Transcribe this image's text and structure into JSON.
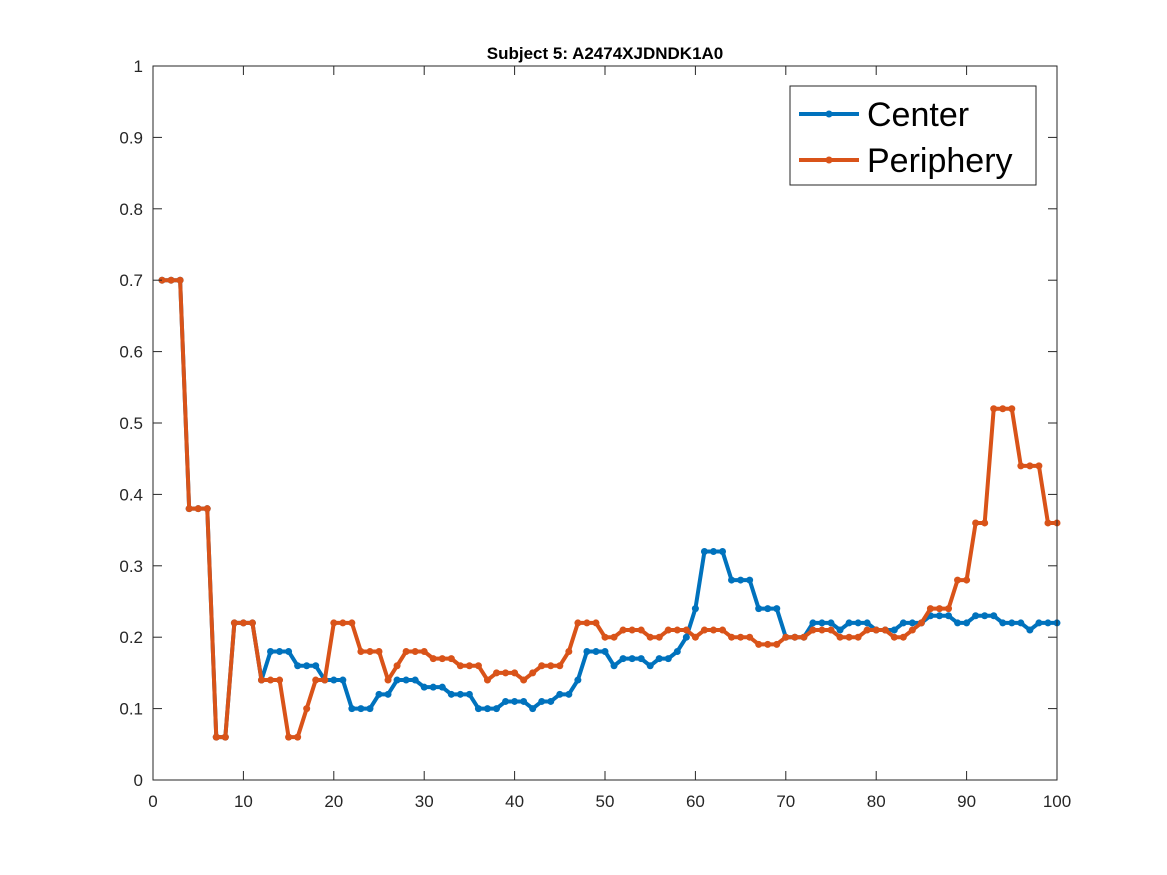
{
  "chart_data": {
    "type": "line",
    "title": "Subject 5: A2474XJDNDK1A0",
    "xlabel": "",
    "ylabel": "",
    "xlim": [
      0,
      100
    ],
    "ylim": [
      0,
      1
    ],
    "xticks": [
      "0",
      "10",
      "20",
      "30",
      "40",
      "50",
      "60",
      "70",
      "80",
      "90",
      "100"
    ],
    "yticks": [
      "0",
      "0.1",
      "0.2",
      "0.3",
      "0.4",
      "0.5",
      "0.6",
      "0.7",
      "0.8",
      "0.9",
      "1"
    ],
    "grid": false,
    "legend_position": "top-right",
    "x": [
      1,
      2,
      3,
      4,
      5,
      6,
      7,
      8,
      9,
      10,
      11,
      12,
      13,
      14,
      15,
      16,
      17,
      18,
      19,
      20,
      21,
      22,
      23,
      24,
      25,
      26,
      27,
      28,
      29,
      30,
      31,
      32,
      33,
      34,
      35,
      36,
      37,
      38,
      39,
      40,
      41,
      42,
      43,
      44,
      45,
      46,
      47,
      48,
      49,
      50,
      51,
      52,
      53,
      54,
      55,
      56,
      57,
      58,
      59,
      60,
      61,
      62,
      63,
      64,
      65,
      66,
      67,
      68,
      69,
      70,
      71,
      72,
      73,
      74,
      75,
      76,
      77,
      78,
      79,
      80,
      81,
      82,
      83,
      84,
      85,
      86,
      87,
      88,
      89,
      90,
      91,
      92,
      93,
      94,
      95,
      96,
      97,
      98,
      99,
      100
    ],
    "series": [
      {
        "name": "Center",
        "color": "#0072BD",
        "values": [
          0.7,
          0.7,
          0.7,
          0.38,
          0.38,
          0.38,
          0.06,
          0.06,
          0.22,
          0.22,
          0.22,
          0.14,
          0.18,
          0.18,
          0.18,
          0.16,
          0.16,
          0.16,
          0.14,
          0.14,
          0.14,
          0.1,
          0.1,
          0.1,
          0.12,
          0.12,
          0.14,
          0.14,
          0.14,
          0.13,
          0.13,
          0.13,
          0.12,
          0.12,
          0.12,
          0.1,
          0.1,
          0.1,
          0.11,
          0.11,
          0.11,
          0.1,
          0.11,
          0.11,
          0.12,
          0.12,
          0.14,
          0.18,
          0.18,
          0.18,
          0.16,
          0.17,
          0.17,
          0.17,
          0.16,
          0.17,
          0.17,
          0.18,
          0.2,
          0.24,
          0.32,
          0.32,
          0.32,
          0.28,
          0.28,
          0.28,
          0.24,
          0.24,
          0.24,
          0.2,
          0.2,
          0.2,
          0.22,
          0.22,
          0.22,
          0.21,
          0.22,
          0.22,
          0.22,
          0.21,
          0.21,
          0.21,
          0.22,
          0.22,
          0.22,
          0.23,
          0.23,
          0.23,
          0.22,
          0.22,
          0.23,
          0.23,
          0.23,
          0.22,
          0.22,
          0.22,
          0.21,
          0.22,
          0.22,
          0.22
        ]
      },
      {
        "name": "Periphery",
        "color": "#D95319",
        "values": [
          0.7,
          0.7,
          0.7,
          0.38,
          0.38,
          0.38,
          0.06,
          0.06,
          0.22,
          0.22,
          0.22,
          0.14,
          0.14,
          0.14,
          0.06,
          0.06,
          0.1,
          0.14,
          0.14,
          0.22,
          0.22,
          0.22,
          0.18,
          0.18,
          0.18,
          0.14,
          0.16,
          0.18,
          0.18,
          0.18,
          0.17,
          0.17,
          0.17,
          0.16,
          0.16,
          0.16,
          0.14,
          0.15,
          0.15,
          0.15,
          0.14,
          0.15,
          0.16,
          0.16,
          0.16,
          0.18,
          0.22,
          0.22,
          0.22,
          0.2,
          0.2,
          0.21,
          0.21,
          0.21,
          0.2,
          0.2,
          0.21,
          0.21,
          0.21,
          0.2,
          0.21,
          0.21,
          0.21,
          0.2,
          0.2,
          0.2,
          0.19,
          0.19,
          0.19,
          0.2,
          0.2,
          0.2,
          0.21,
          0.21,
          0.21,
          0.2,
          0.2,
          0.2,
          0.21,
          0.21,
          0.21,
          0.2,
          0.2,
          0.21,
          0.22,
          0.24,
          0.24,
          0.24,
          0.28,
          0.28,
          0.36,
          0.36,
          0.52,
          0.52,
          0.52,
          0.44,
          0.44,
          0.44,
          0.36,
          0.36
        ]
      }
    ]
  }
}
